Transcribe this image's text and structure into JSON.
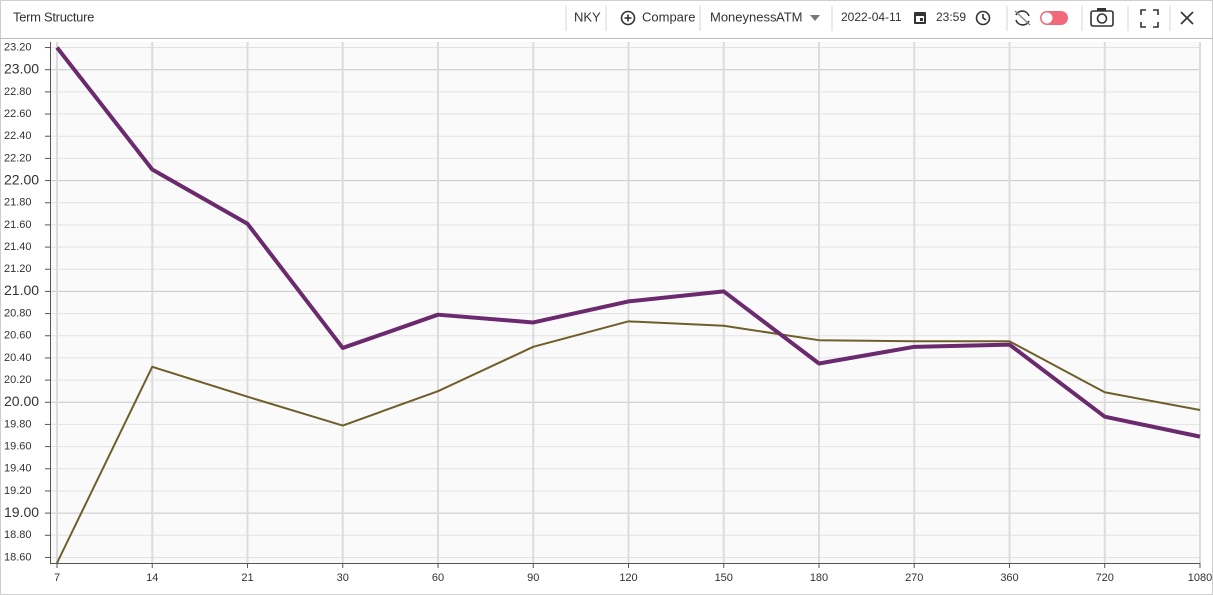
{
  "toolbar": {
    "title": "Term Structure",
    "symbol": "NKY",
    "compare": "Compare",
    "moneyness": "Moneyness",
    "moneyness_value": "ATM",
    "date": "2022-04-11",
    "time": "23:59"
  },
  "chart_data": {
    "type": "line",
    "categories": [
      "7",
      "14",
      "21",
      "30",
      "60",
      "90",
      "120",
      "150",
      "180",
      "270",
      "360",
      "720",
      "1080"
    ],
    "series": [
      {
        "color": "#6b2a6e",
        "values": [
          23.2,
          22.1,
          21.61,
          20.49,
          20.79,
          20.72,
          20.91,
          21.0,
          20.35,
          20.5,
          20.52,
          19.87,
          19.69
        ]
      },
      {
        "color": "#6e5f2a",
        "values": [
          18.55,
          20.32,
          20.05,
          19.79,
          20.1,
          20.5,
          20.73,
          20.69,
          20.56,
          20.55,
          20.55,
          20.09,
          19.93
        ]
      }
    ],
    "ylim": [
      18.55,
      23.25
    ],
    "yticks": [
      {
        "value": 18.6,
        "label": "18.60"
      },
      {
        "value": 18.8,
        "label": "18.80"
      },
      {
        "value": 19.0,
        "label": "19.00"
      },
      {
        "value": 19.2,
        "label": "19.20"
      },
      {
        "value": 19.4,
        "label": "19.40"
      },
      {
        "value": 19.6,
        "label": "19.60"
      },
      {
        "value": 19.8,
        "label": "19.80"
      },
      {
        "value": 20.0,
        "label": "20.00"
      },
      {
        "value": 20.2,
        "label": "20.20"
      },
      {
        "value": 20.4,
        "label": "20.40"
      },
      {
        "value": 20.6,
        "label": "20.60"
      },
      {
        "value": 20.8,
        "label": "20.80"
      },
      {
        "value": 21.0,
        "label": "21.00"
      },
      {
        "value": 21.2,
        "label": "21.20"
      },
      {
        "value": 21.4,
        "label": "21.40"
      },
      {
        "value": 21.6,
        "label": "21.60"
      },
      {
        "value": 21.8,
        "label": "21.80"
      },
      {
        "value": 22.0,
        "label": "22.00"
      },
      {
        "value": 22.2,
        "label": "22.20"
      },
      {
        "value": 22.4,
        "label": "22.40"
      },
      {
        "value": 22.6,
        "label": "22.60"
      },
      {
        "value": 22.8,
        "label": "22.80"
      },
      {
        "value": 23.0,
        "label": "23.00"
      },
      {
        "value": 23.2,
        "label": "23.20"
      }
    ],
    "grid": true
  }
}
